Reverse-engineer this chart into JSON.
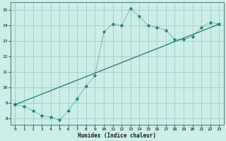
{
  "xlabel": "Humidex (Indice chaleur)",
  "bg_color": "#cceee8",
  "grid_color": "#aacccc",
  "line_color": "#1a7a70",
  "xlim": [
    -0.5,
    23.5
  ],
  "ylim": [
    7.6,
    15.5
  ],
  "xticks": [
    0,
    1,
    2,
    3,
    4,
    5,
    6,
    7,
    8,
    9,
    10,
    11,
    12,
    13,
    14,
    15,
    16,
    17,
    18,
    19,
    20,
    21,
    22,
    23
  ],
  "yticks": [
    8,
    9,
    10,
    11,
    12,
    13,
    14,
    15
  ],
  "line1_x": [
    0,
    1,
    2,
    3,
    4,
    5,
    6,
    7,
    8,
    9,
    10,
    11,
    12,
    13,
    14,
    15,
    16,
    17,
    18,
    19,
    20,
    21,
    22,
    23
  ],
  "line1_y": [
    8.9,
    8.8,
    8.5,
    8.2,
    8.1,
    7.9,
    8.5,
    9.3,
    10.1,
    10.8,
    13.6,
    14.1,
    14.0,
    15.1,
    14.6,
    14.0,
    13.9,
    13.7,
    13.1,
    13.1,
    13.3,
    13.9,
    14.2,
    14.1
  ],
  "line2_x": [
    0,
    23
  ],
  "line2_y": [
    8.9,
    14.1
  ]
}
